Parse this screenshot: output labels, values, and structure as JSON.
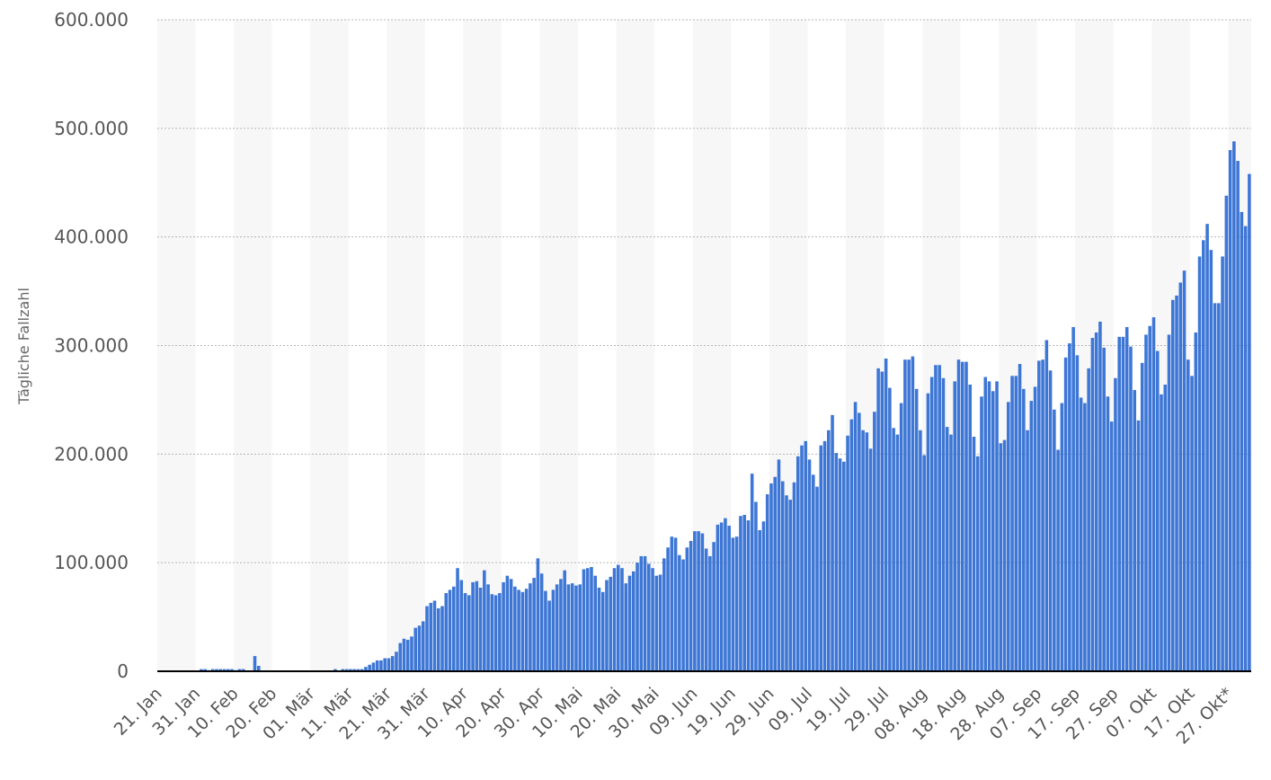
{
  "chart_data": {
    "type": "bar",
    "ylabel": "Tägliche Fallzahl",
    "ylim": [
      0,
      600000
    ],
    "yticks": [
      0,
      100000,
      200000,
      300000,
      400000,
      500000,
      600000
    ],
    "ytick_labels": [
      "0",
      "100.000",
      "200.000",
      "300.000",
      "400.000",
      "500.000",
      "600.000"
    ],
    "xtick_labels": [
      "21. Jan",
      "31. Jan",
      "10. Feb",
      "20. Feb",
      "01. Mär",
      "11. Mär",
      "21. Mär",
      "31. Mär",
      "10. Apr",
      "20. Apr",
      "30. Apr",
      "10. Mai",
      "20. Mai",
      "30. Mai",
      "09. Jun",
      "19. Jun",
      "29. Jun",
      "09. Jul",
      "19. Jul",
      "29. Jul",
      "08. Aug",
      "18. Aug",
      "28. Aug",
      "07. Sep",
      "17. Sep",
      "27. Sep",
      "07. Okt",
      "17. Okt",
      "27. Okt*"
    ],
    "grid": true,
    "bar_color": "#3d76d5",
    "values": [
      0,
      0,
      0,
      0,
      0,
      0,
      0,
      0,
      0,
      0,
      0,
      2000,
      2000,
      1000,
      2000,
      2000,
      2000,
      2000,
      2000,
      2000,
      1000,
      2000,
      2000,
      0,
      0,
      14000,
      5000,
      0,
      0,
      0,
      0,
      0,
      0,
      0,
      0,
      0,
      0,
      0,
      0,
      0,
      0,
      0,
      0,
      0,
      0,
      0,
      2000,
      0,
      2000,
      2000,
      2000,
      2000,
      2000,
      2000,
      4000,
      6000,
      8000,
      10000,
      10000,
      12000,
      12000,
      14000,
      18000,
      26000,
      30000,
      29000,
      32000,
      40000,
      42000,
      46000,
      60000,
      63000,
      65000,
      58000,
      60000,
      72000,
      75000,
      78000,
      95000,
      84000,
      72000,
      70000,
      82000,
      83000,
      77000,
      93000,
      80000,
      71000,
      70000,
      72000,
      82000,
      88000,
      85000,
      78000,
      75000,
      73000,
      76000,
      81000,
      86000,
      104000,
      90000,
      74000,
      65000,
      75000,
      80000,
      85000,
      93000,
      80000,
      81000,
      79000,
      80000,
      94000,
      95000,
      96000,
      88000,
      77000,
      73000,
      84000,
      87000,
      95000,
      98000,
      95000,
      81000,
      88000,
      92000,
      100000,
      106000,
      106000,
      99000,
      95000,
      88000,
      89000,
      104000,
      114000,
      124000,
      123000,
      107000,
      103000,
      114000,
      120000,
      129000,
      129000,
      127000,
      113000,
      106000,
      119000,
      135000,
      137000,
      141000,
      134000,
      123000,
      124000,
      143000,
      144000,
      139000,
      182000,
      156000,
      130000,
      138000,
      163000,
      173000,
      179000,
      195000,
      175000,
      162000,
      158000,
      174000,
      198000,
      208000,
      212000,
      195000,
      181000,
      170000,
      208000,
      212000,
      222000,
      236000,
      201000,
      196000,
      193000,
      217000,
      232000,
      248000,
      238000,
      222000,
      220000,
      205000,
      239000,
      279000,
      276000,
      288000,
      261000,
      224000,
      218000,
      247000,
      287000,
      287000,
      290000,
      260000,
      222000,
      199000,
      256000,
      271000,
      282000,
      282000,
      270000,
      225000,
      218000,
      267000,
      287000,
      285000,
      285000,
      264000,
      216000,
      198000,
      253000,
      271000,
      267000,
      258000,
      267000,
      210000,
      213000,
      248000,
      272000,
      272000,
      283000,
      260000,
      222000,
      249000,
      262000,
      286000,
      287000,
      305000,
      277000,
      241000,
      204000,
      247000,
      289000,
      302000,
      317000,
      291000,
      252000,
      247000,
      279000,
      307000,
      312000,
      322000,
      298000,
      253000,
      230000,
      270000,
      308000,
      308000,
      317000,
      299000,
      259000,
      231000,
      284000,
      310000,
      318000,
      326000,
      295000,
      255000,
      264000,
      310000,
      342000,
      346000,
      358000,
      369000,
      287000,
      272000,
      312000,
      382000,
      397000,
      412000,
      388000,
      339000,
      339000,
      382000,
      438000,
      480000,
      488000,
      470000,
      423000,
      410000,
      458000
    ]
  }
}
